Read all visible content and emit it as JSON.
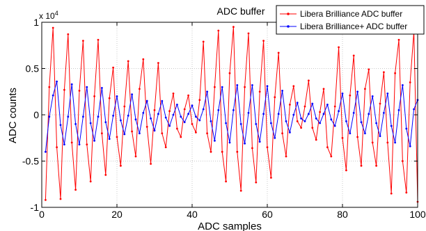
{
  "chart_data": {
    "type": "line",
    "title": "ADC buffer",
    "xlabel": "ADC samples",
    "ylabel": "ADC counts",
    "y_multiplier": "x 10",
    "y_multiplier_exp": "4",
    "xlim": [
      0,
      100
    ],
    "ylim": [
      -10000,
      10000
    ],
    "x_ticks": [
      0,
      20,
      40,
      60,
      80,
      100
    ],
    "x_tick_labels": [
      "0",
      "20",
      "40",
      "60",
      "80",
      "100"
    ],
    "y_ticks": [
      -10000,
      -5000,
      0,
      5000,
      10000
    ],
    "y_tick_labels": [
      "-1",
      "-0.5",
      "0",
      "0.5",
      "1"
    ],
    "grid": true,
    "legend_position": "top-right",
    "x": [
      1,
      2,
      3,
      4,
      5,
      6,
      7,
      8,
      9,
      10,
      11,
      12,
      13,
      14,
      15,
      16,
      17,
      18,
      19,
      20,
      21,
      22,
      23,
      24,
      25,
      26,
      27,
      28,
      29,
      30,
      31,
      32,
      33,
      34,
      35,
      36,
      37,
      38,
      39,
      40,
      41,
      42,
      43,
      44,
      45,
      46,
      47,
      48,
      49,
      50,
      51,
      52,
      53,
      54,
      55,
      56,
      57,
      58,
      59,
      60,
      61,
      62,
      63,
      64,
      65,
      66,
      67,
      68,
      69,
      70,
      71,
      72,
      73,
      74,
      75,
      76,
      77,
      78,
      79,
      80,
      81,
      82,
      83,
      84,
      85,
      86,
      87,
      88,
      89,
      90,
      91,
      92,
      93,
      94,
      95,
      96,
      97,
      98,
      99,
      100
    ],
    "series": [
      {
        "name": "Libera Brilliance ADC buffer",
        "color": "#ff0000",
        "values": [
          -9200,
          3000,
          9400,
          -3500,
          -9100,
          2700,
          8700,
          -3000,
          -8100,
          2600,
          8000,
          -3200,
          -7200,
          2000,
          8100,
          -2000,
          -6500,
          1800,
          5100,
          -2400,
          -5500,
          900,
          5800,
          -1800,
          -4500,
          2800,
          6000,
          -1300,
          -5300,
          500,
          5600,
          -2000,
          -3500,
          400,
          2300,
          -1500,
          -2400,
          600,
          2100,
          -1000,
          -1900,
          1600,
          7900,
          -2000,
          -4000,
          3000,
          9100,
          -4000,
          -7200,
          4500,
          9500,
          -4000,
          -8200,
          3000,
          8800,
          -3600,
          -7300,
          2500,
          8000,
          -3500,
          -6800,
          1900,
          6700,
          -2000,
          -4500,
          1100,
          3100,
          -700,
          -1400,
          900,
          3700,
          -1400,
          -2700,
          300,
          2800,
          -3500,
          -4500,
          900,
          7300,
          -2500,
          -6000,
          2100,
          6400,
          -2400,
          -5500,
          2800,
          4900,
          -3000,
          -5500,
          1200,
          4600,
          -3000,
          -8500,
          4500,
          8100,
          -5000,
          -8400,
          3500,
          9000,
          -9400
        ]
      },
      {
        "name": "Libera Brilliance+ ADC buffer",
        "color": "#0000ff",
        "values": [
          -4000,
          -200,
          2100,
          3600,
          -1100,
          -3200,
          -200,
          3300,
          -1000,
          -3200,
          -200,
          3000,
          -900,
          -2800,
          -200,
          2900,
          -800,
          -2600,
          -100,
          2000,
          -600,
          -2100,
          -100,
          2200,
          -500,
          -2000,
          200,
          1500,
          -400,
          -1700,
          100,
          1500,
          -300,
          -1200,
          0,
          1100,
          -200,
          -800,
          100,
          1000,
          -200,
          -600,
          600,
          2500,
          -700,
          -2800,
          500,
          3000,
          -900,
          -3000,
          500,
          3200,
          -1000,
          -3100,
          200,
          3200,
          -1000,
          -2900,
          100,
          3100,
          -900,
          -2500,
          100,
          2600,
          -700,
          -1900,
          0,
          1300,
          -400,
          -700,
          100,
          1200,
          -400,
          -900,
          100,
          1100,
          -500,
          -1200,
          400,
          2300,
          -700,
          -2000,
          200,
          2500,
          -800,
          -2000,
          100,
          2000,
          -900,
          -2300,
          200,
          2300,
          -1200,
          -3000,
          500,
          3200,
          -1500,
          -3400,
          600,
          1600
        ]
      }
    ]
  }
}
